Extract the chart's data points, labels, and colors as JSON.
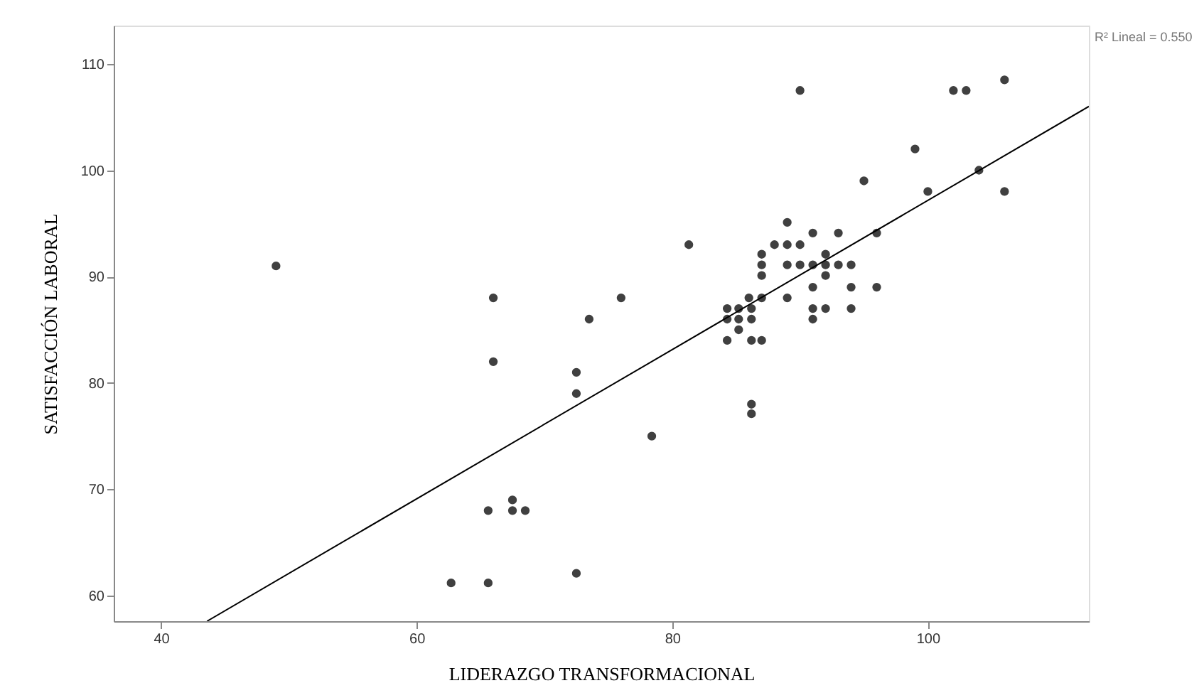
{
  "chart_data": {
    "type": "scatter",
    "xlabel": "LIDERAZGO TRANSFORMACIONAL",
    "ylabel": "SATISFACCIÓN LABORAL",
    "annotations": [
      "R² Lineal = 0.550"
    ],
    "xlim": [
      36.3,
      112.6
    ],
    "ylim": [
      57.6,
      113.6
    ],
    "xticks": [
      40,
      60,
      80,
      100
    ],
    "yticks": [
      60,
      70,
      80,
      90,
      100,
      110
    ],
    "grid": false,
    "marker": "circle",
    "series": [
      {
        "color": "#404040",
        "x": [
          49,
          66,
          76,
          73.5,
          66,
          72.5,
          72.5,
          78.4,
          81.3,
          67.5,
          65.6,
          67.5,
          68.5,
          62.7,
          65.6,
          72.5,
          86.2,
          86.2,
          89,
          88,
          89,
          90,
          87,
          87,
          89,
          90,
          91,
          92,
          93,
          94,
          92,
          92,
          87,
          91,
          94,
          96,
          89,
          86,
          87,
          84.3,
          85.2,
          86.2,
          91,
          92,
          94,
          84.3,
          85.2,
          86.2,
          91,
          85.2,
          84.3,
          86.2,
          87,
          90,
          102,
          103,
          106,
          99,
          95,
          100,
          104,
          106,
          91,
          93,
          96
        ],
        "values": [
          91,
          88,
          88,
          86,
          82,
          81,
          79,
          75,
          93,
          69,
          68,
          68,
          68,
          61.2,
          61.2,
          62.1,
          78,
          77.1,
          95.1,
          93,
          93,
          93,
          92.1,
          91.1,
          91.1,
          91.1,
          91.1,
          91.1,
          91.1,
          91.1,
          92.1,
          90.1,
          90.1,
          89,
          89,
          89,
          88,
          88,
          88,
          87,
          87,
          87,
          87,
          87,
          87,
          86,
          86,
          86,
          86,
          85,
          84,
          84,
          84,
          107.5,
          107.5,
          107.5,
          108.5,
          102,
          99,
          98,
          100,
          98,
          94.1,
          94.1,
          94.1
        ]
      },
      {
        "type": "line",
        "color": "#000000",
        "line_style": "solid",
        "marker": "none",
        "x": [
          43.6,
          112.6
        ],
        "values": [
          57.6,
          106
        ]
      }
    ]
  }
}
